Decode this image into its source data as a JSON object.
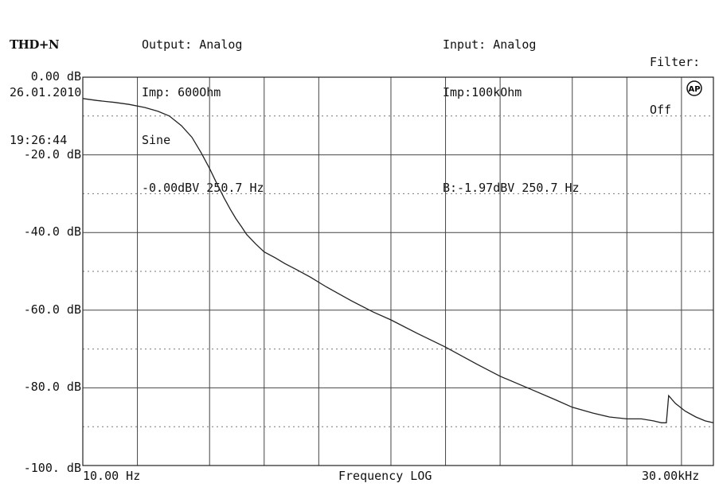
{
  "header": {
    "title": "THD+N",
    "date": "26.01.2010",
    "time": "19:26:44",
    "output_line1": "Output: Analog",
    "output_line2": "Imp: 600Ohm",
    "output_line3": "Sine",
    "output_line4": "-0.00dBV 250.7 Hz",
    "input_line1": "Input: Analog",
    "input_line2": "Imp:100kOhm",
    "input_line4": "B:-1.97dBV 250.7 Hz",
    "filter_line1": "Filter:",
    "filter_line2": "Off",
    "logo": "AP"
  },
  "chart_data": {
    "type": "line",
    "title": "THD+N",
    "xlabel": "Frequency LOG",
    "ylabel": "",
    "x_scale": "log",
    "xlim": [
      10,
      30000
    ],
    "ylim": [
      -100,
      0
    ],
    "x_tick_labels": [
      "10.00 Hz",
      "30.00kHz"
    ],
    "y_tick_labels": [
      "0.00 dB",
      "-20.0 dB",
      "-40.0 dB",
      "-60.0 dB",
      "-80.0 dB",
      "-100. dB"
    ],
    "y_ticks": [
      0,
      -20,
      -40,
      -60,
      -80,
      -100
    ],
    "grid": true,
    "series": [
      {
        "x": [
          10,
          12,
          15,
          18,
          22,
          26,
          30,
          35,
          40,
          45,
          50,
          55,
          60,
          65,
          70,
          75,
          80,
          90,
          100,
          115,
          130,
          150,
          180,
          220,
          300,
          400,
          500,
          700,
          1000,
          1500,
          2000,
          3000,
          4000,
          5000,
          6500,
          8000,
          10000,
          12000,
          14000,
          15500,
          16500,
          17000,
          18500,
          21000,
          24000,
          27000,
          30000
        ],
        "y": [
          -5.5,
          -6,
          -6.5,
          -7,
          -7.8,
          -8.8,
          -10,
          -12.5,
          -15.5,
          -19.5,
          -23.5,
          -27.5,
          -31,
          -34,
          -36.5,
          -38.5,
          -40.5,
          -43,
          -45,
          -46.5,
          -48,
          -49.5,
          -51.5,
          -54,
          -57.5,
          -60.5,
          -62.5,
          -66,
          -69.5,
          -74,
          -77,
          -80.5,
          -83,
          -85,
          -86.5,
          -87.5,
          -88,
          -88,
          -88.5,
          -89,
          -89,
          -82,
          -84,
          -86,
          -87.5,
          -88.5,
          -89
        ]
      }
    ]
  }
}
